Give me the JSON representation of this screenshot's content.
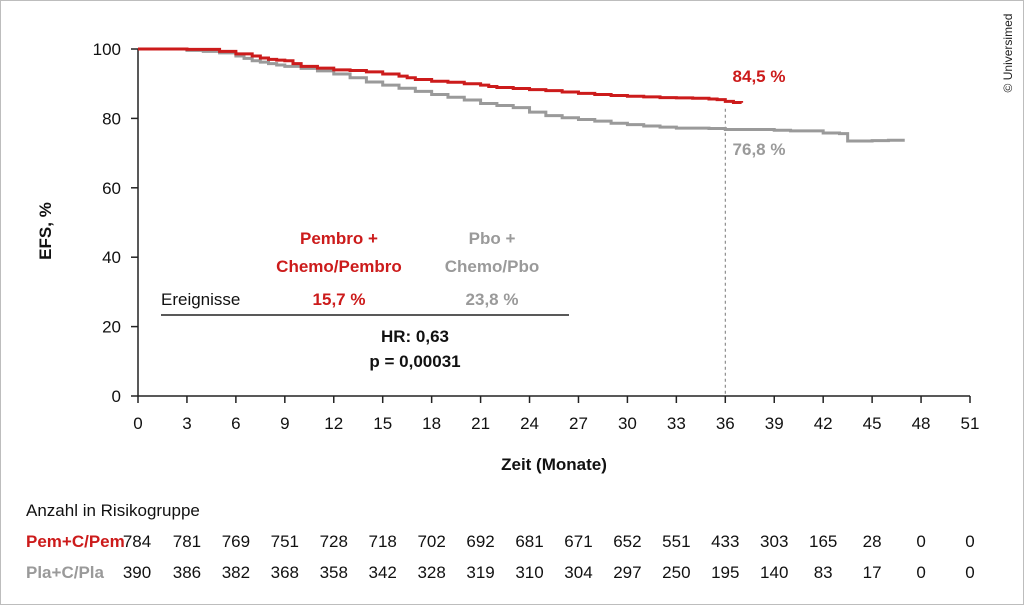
{
  "copyright": "© Universimed",
  "chart_data": {
    "type": "line",
    "ylabel": "EFS, %",
    "xlabel": "Zeit (Monate)",
    "xlim": [
      0,
      51
    ],
    "ylim": [
      0,
      100
    ],
    "xticks": [
      "0",
      "3",
      "6",
      "9",
      "12",
      "15",
      "18",
      "21",
      "24",
      "27",
      "30",
      "33",
      "36",
      "39",
      "42",
      "45",
      "48",
      "51"
    ],
    "yticks": [
      "0",
      "20",
      "40",
      "60",
      "80",
      "100"
    ],
    "reference_x": 36,
    "colors": {
      "pem": "#cc1b1b",
      "pla": "#9a9a9a"
    },
    "series": [
      {
        "key": "pem",
        "end_label": "84,5 %",
        "x": [
          0,
          3,
          5,
          6,
          7,
          7.5,
          8,
          8.5,
          9,
          9.5,
          10,
          11,
          12,
          13,
          14,
          15,
          16,
          16.5,
          17,
          18,
          19,
          20,
          21,
          21.5,
          22,
          23,
          24,
          25,
          26,
          27,
          28,
          29,
          30,
          31,
          32,
          33,
          34,
          35,
          35.5,
          36,
          36.5,
          37
        ],
        "y": [
          100,
          99.9,
          99.3,
          98.6,
          98,
          97.4,
          97,
          96.8,
          96.6,
          95.8,
          95,
          94.5,
          94,
          93.8,
          93.4,
          92.8,
          92.2,
          91.7,
          91.2,
          90.7,
          90.4,
          90,
          89.6,
          89.2,
          88.9,
          88.6,
          88.3,
          88,
          87.6,
          87.2,
          86.9,
          86.6,
          86.4,
          86.2,
          86,
          85.9,
          85.8,
          85.6,
          85.4,
          84.9,
          84.6,
          84.5
        ]
      },
      {
        "key": "pla",
        "x": [
          0,
          3,
          4,
          5,
          6,
          6.5,
          7,
          7.5,
          8,
          8.5,
          9,
          10,
          11,
          12,
          13,
          14,
          15,
          16,
          17,
          18,
          19,
          20,
          21,
          22,
          23,
          24,
          25,
          26,
          27,
          28,
          29,
          30,
          31,
          32,
          33,
          34,
          35,
          36,
          37,
          38,
          39,
          40,
          41,
          42,
          43,
          43.5,
          44,
          45,
          46,
          47
        ],
        "y": [
          100,
          99.6,
          99.3,
          98.9,
          98,
          97.3,
          96.6,
          96.2,
          95.8,
          95.4,
          95,
          94.4,
          93.7,
          92.8,
          91.7,
          90.5,
          89.6,
          88.7,
          87.8,
          86.9,
          86.1,
          85.3,
          84.3,
          83.7,
          83.1,
          81.8,
          80.8,
          80.2,
          79.7,
          79.2,
          78.6,
          78.2,
          77.8,
          77.5,
          77.2,
          77.2,
          77.1,
          76.8,
          76.8,
          76.8,
          76.6,
          76.4,
          76.4,
          75.8,
          75.6,
          73.5,
          73.5,
          73.6,
          73.7,
          73.7
        ]
      }
    ],
    "legend_table": {
      "pem_label_1": "Pembro +",
      "pem_label_2": "Chemo/Pembro",
      "pla_label_1": "Pbo +",
      "pla_label_2": "Chemo/Pbo",
      "row_label": "Ereignisse",
      "pem_events": "15,7 %",
      "pla_events": "23,8 %",
      "hr": "HR: 0,63",
      "p": "p = 0,00031"
    },
    "end_label_pla": "76,8 %",
    "risk_table": {
      "title": "Anzahl in Risikogruppe",
      "rows": [
        {
          "label": "Pem+C/Pem",
          "color_key": "pem",
          "values": [
            "784",
            "781",
            "769",
            "751",
            "728",
            "718",
            "702",
            "692",
            "681",
            "671",
            "652",
            "551",
            "433",
            "303",
            "165",
            "28",
            "0",
            "0"
          ]
        },
        {
          "label": "Pla+C/Pla",
          "color_key": "pla",
          "values": [
            "390",
            "386",
            "382",
            "368",
            "358",
            "342",
            "328",
            "319",
            "310",
            "304",
            "297",
            "250",
            "195",
            "140",
            "83",
            "17",
            "0",
            "0"
          ]
        }
      ]
    }
  }
}
